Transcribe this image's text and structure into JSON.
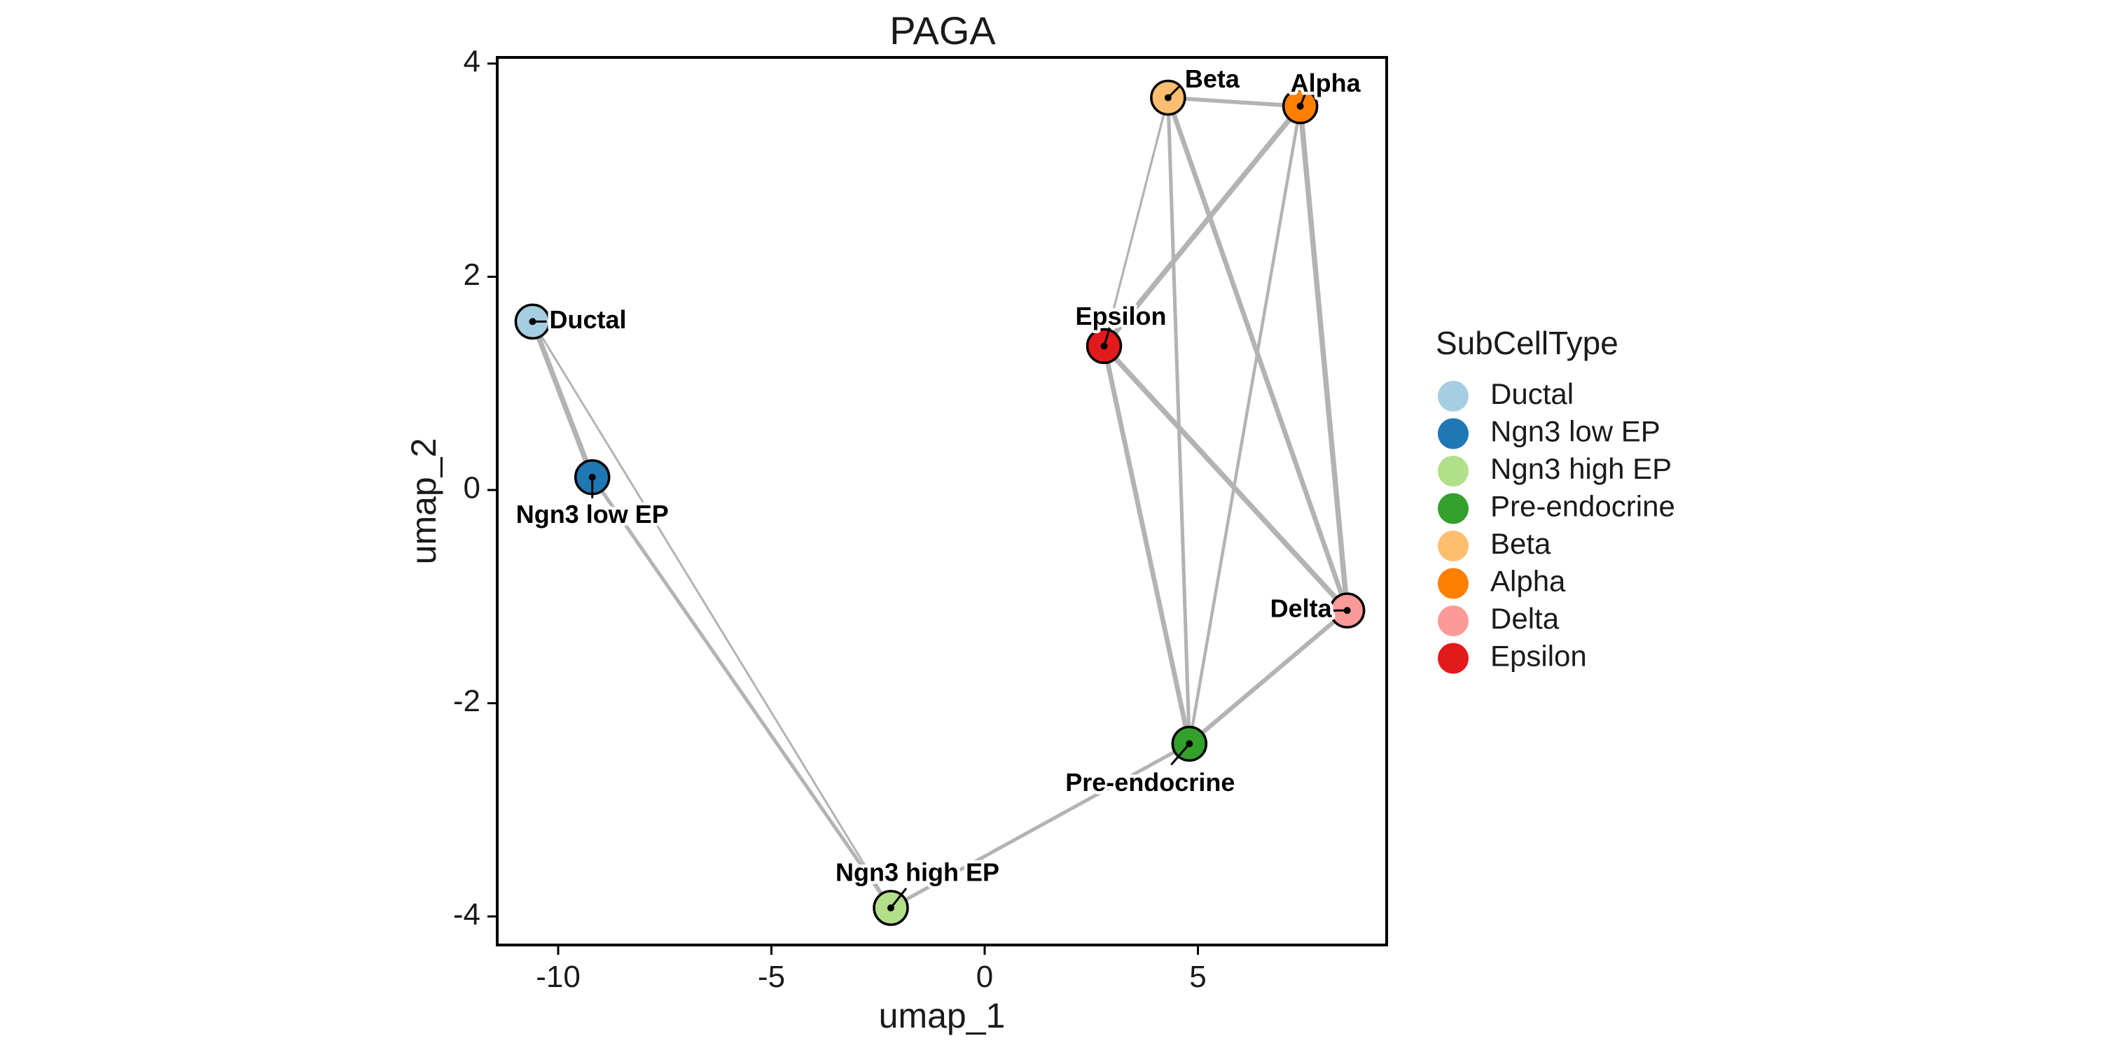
{
  "chart_data": {
    "type": "scatter",
    "title": "PAGA",
    "xlabel": "umap_1",
    "ylabel": "umap_2",
    "xlim": [
      -11.5,
      9.5
    ],
    "ylim": [
      -4.3,
      4.05
    ],
    "xticks": [
      -10,
      -5,
      0,
      5
    ],
    "yticks": [
      -4,
      -2,
      0,
      2,
      4
    ],
    "grid": false,
    "legend": {
      "title": "SubCellType",
      "placement": "right"
    },
    "nodes": [
      {
        "name": "Ductal",
        "x": -10.6,
        "y": 1.58,
        "color": "#A6CEE3"
      },
      {
        "name": "Ngn3 low EP",
        "x": -9.2,
        "y": 0.12,
        "color": "#1F78B4"
      },
      {
        "name": "Ngn3 high EP",
        "x": -2.2,
        "y": -3.92,
        "color": "#B2DF8A"
      },
      {
        "name": "Pre-endocrine",
        "x": 4.8,
        "y": -2.38,
        "color": "#33A02C"
      },
      {
        "name": "Beta",
        "x": 4.3,
        "y": 3.68,
        "color": "#FDBF6F"
      },
      {
        "name": "Alpha",
        "x": 7.4,
        "y": 3.6,
        "color": "#FF7F00"
      },
      {
        "name": "Delta",
        "x": 8.5,
        "y": -1.13,
        "color": "#FB9A99"
      },
      {
        "name": "Epsilon",
        "x": 2.8,
        "y": 1.35,
        "color": "#E31A1C"
      }
    ],
    "edges": [
      {
        "source": "Ductal",
        "target": "Ngn3 low EP",
        "weight": 1.0
      },
      {
        "source": "Ductal",
        "target": "Ngn3 high EP",
        "weight": 0.25
      },
      {
        "source": "Ngn3 low EP",
        "target": "Ngn3 high EP",
        "weight": 0.6
      },
      {
        "source": "Ngn3 high EP",
        "target": "Pre-endocrine",
        "weight": 0.6
      },
      {
        "source": "Pre-endocrine",
        "target": "Epsilon",
        "weight": 0.9
      },
      {
        "source": "Pre-endocrine",
        "target": "Delta",
        "weight": 0.8
      },
      {
        "source": "Pre-endocrine",
        "target": "Beta",
        "weight": 0.6
      },
      {
        "source": "Pre-endocrine",
        "target": "Alpha",
        "weight": 0.5
      },
      {
        "source": "Epsilon",
        "target": "Alpha",
        "weight": 1.0
      },
      {
        "source": "Epsilon",
        "target": "Delta",
        "weight": 1.0
      },
      {
        "source": "Epsilon",
        "target": "Beta",
        "weight": 0.3
      },
      {
        "source": "Beta",
        "target": "Alpha",
        "weight": 0.7
      },
      {
        "source": "Beta",
        "target": "Delta",
        "weight": 0.9
      },
      {
        "source": "Alpha",
        "target": "Delta",
        "weight": 1.0
      }
    ]
  }
}
